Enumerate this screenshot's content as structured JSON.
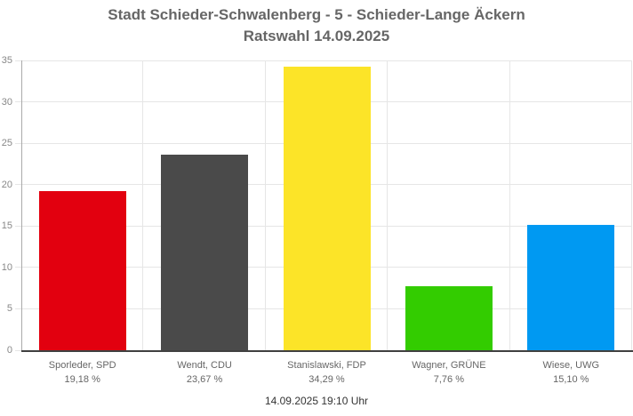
{
  "header": {
    "title_line1": "Stadt Schieder-Schwalenberg - 5 - Schieder-Lange Äckern",
    "title_line2": "Ratswahl 14.09.2025"
  },
  "footer": {
    "timestamp": "14.09.2025 19:10 Uhr"
  },
  "colors": {
    "title": "#666666",
    "tick_label": "#888888",
    "category_label": "#666666",
    "gridline": "#e6e6e6",
    "axis_line": "#aaaaaa",
    "baseline": "#404040",
    "background": "#ffffff"
  },
  "chart_data": {
    "type": "bar",
    "title": "Stadt Schieder-Schwalenberg - 5 - Schieder-Lange Äckern",
    "subtitle": "Ratswahl 14.09.2025",
    "categories": [
      "Sporleder, SPD",
      "Wendt, CDU",
      "Stanislawski, FDP",
      "Wagner, GRÜNE",
      "Wiese, UWG"
    ],
    "values": [
      19.18,
      23.67,
      34.29,
      7.76,
      15.1
    ],
    "value_labels": [
      "19,18 %",
      "23,67 %",
      "34,29 %",
      "7,76 %",
      "15,10 %"
    ],
    "bar_colors": [
      "#e2000f",
      "#4a4a4a",
      "#fce428",
      "#33cc00",
      "#0099f2"
    ],
    "bar_names": [
      "bar-spd",
      "bar-cdu",
      "bar-fdp",
      "bar-gruene",
      "bar-uwg"
    ],
    "xlabel": "",
    "ylabel": "",
    "ylim": [
      0,
      35
    ],
    "yticks": [
      0,
      5,
      10,
      15,
      20,
      25,
      30,
      35
    ],
    "grid": true,
    "legend_position": "none",
    "footer": "14.09.2025 19:10 Uhr"
  }
}
